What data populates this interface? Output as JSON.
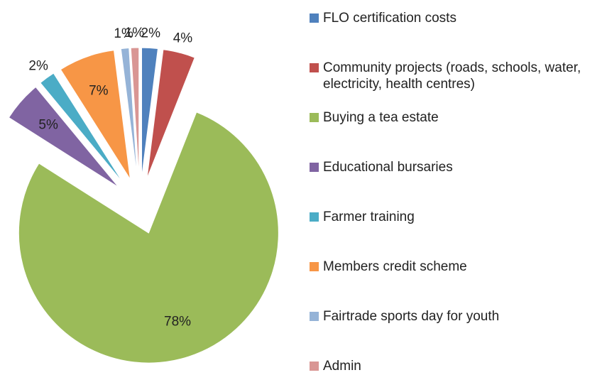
{
  "chart_data": {
    "type": "pie",
    "categories": [
      "FLO certification costs",
      "Community projects (roads, schools, water, electricity, health centres)",
      "Buying a tea estate",
      "Educational bursaries",
      "Farmer training",
      "Members credit scheme",
      "Fairtrade sports day for youth",
      "Admin"
    ],
    "values": [
      2,
      4,
      78,
      5,
      2,
      7,
      1,
      1
    ],
    "value_labels": [
      "2%",
      "4%",
      "78%",
      "5%",
      "2%",
      "7%",
      "1%",
      "1%"
    ],
    "colors": [
      "#4f81bd",
      "#c0504d",
      "#9bbb59",
      "#8064a2",
      "#4bacc6",
      "#f79646",
      "#95b3d7",
      "#d99694"
    ],
    "exploded": true,
    "legend": "right"
  }
}
